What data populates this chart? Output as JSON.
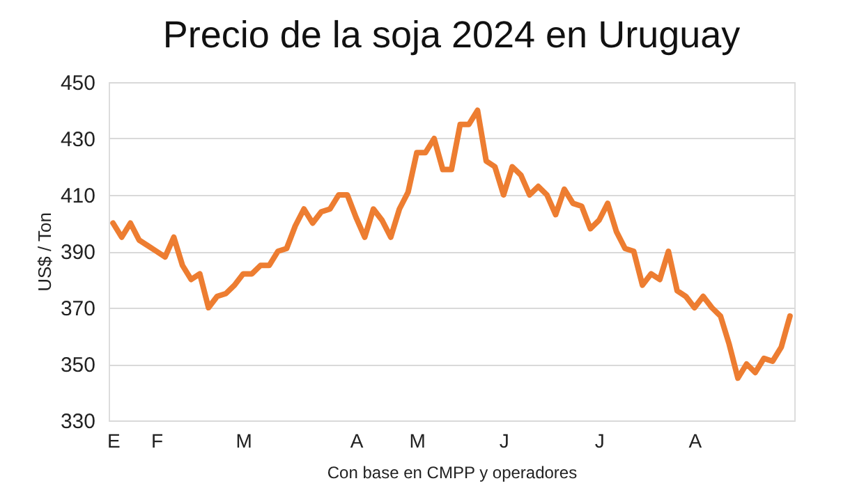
{
  "chart_data": {
    "type": "line",
    "title": "Precio de la soja 2024 en Uruguay",
    "ylabel": "US$ / Ton",
    "annotations": [
      "Con base en CMPP y operadores"
    ],
    "categories": [
      "E",
      null,
      null,
      null,
      null,
      "F",
      null,
      null,
      null,
      null,
      null,
      null,
      null,
      null,
      null,
      "M",
      null,
      null,
      null,
      null,
      null,
      null,
      null,
      null,
      null,
      null,
      null,
      null,
      "A",
      null,
      null,
      null,
      null,
      null,
      null,
      "M",
      null,
      null,
      null,
      null,
      null,
      null,
      null,
      null,
      null,
      "J",
      null,
      null,
      null,
      null,
      null,
      null,
      null,
      null,
      null,
      null,
      "J",
      null,
      null,
      null,
      null,
      null,
      null,
      null,
      null,
      null,
      null,
      "A",
      null,
      null,
      null,
      null,
      null,
      null,
      null,
      null,
      null,
      null,
      null
    ],
    "series": [
      {
        "color": "#ed7d31",
        "values": [
          400,
          395,
          400,
          394,
          392,
          390,
          388,
          395,
          385,
          380,
          382,
          370,
          374,
          375,
          378,
          382,
          382,
          385,
          385,
          390,
          391,
          399,
          405,
          400,
          404,
          405,
          410,
          410,
          402,
          395,
          405,
          401,
          395,
          405,
          411,
          425,
          425,
          430,
          419,
          419,
          435,
          435,
          440,
          422,
          420,
          410,
          420,
          417,
          410,
          413,
          410,
          403,
          412,
          407,
          406,
          398,
          401,
          407,
          397,
          391,
          390,
          378,
          382,
          380,
          390,
          376,
          374,
          370,
          374,
          370,
          367,
          357,
          345,
          350,
          347,
          352,
          351,
          356,
          367
        ]
      }
    ],
    "ylim": [
      330,
      450
    ],
    "yticks": [
      330,
      350,
      370,
      390,
      410,
      430,
      450
    ],
    "grid": "y",
    "legend": false,
    "marker": "none",
    "line_style": "solid"
  }
}
